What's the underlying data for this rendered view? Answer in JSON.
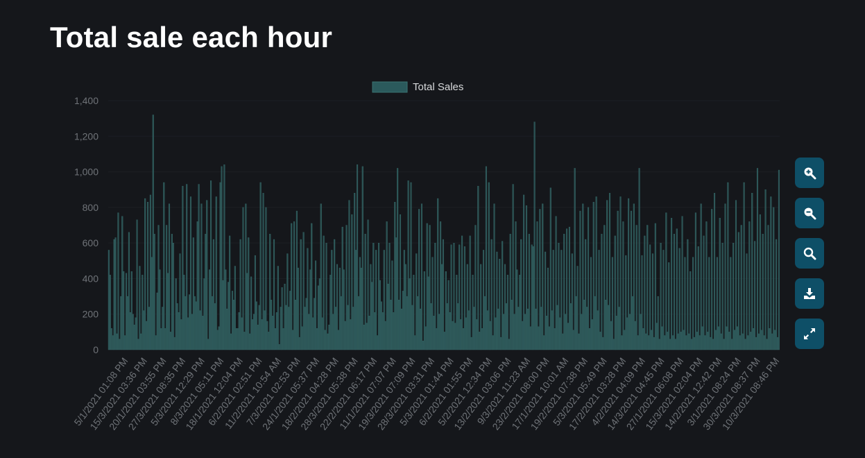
{
  "page": {
    "title": "Total sale each hour"
  },
  "toolbar": [
    {
      "name": "zoom-in-button",
      "icon": "zoom-in-icon"
    },
    {
      "name": "zoom-out-button",
      "icon": "zoom-out-icon"
    },
    {
      "name": "zoom-reset-button",
      "icon": "search-icon"
    },
    {
      "name": "download-button",
      "icon": "download-icon"
    },
    {
      "name": "fullscreen-button",
      "icon": "expand-icon"
    }
  ],
  "colors": {
    "background": "#15171b",
    "bar_fill": "#2c5556",
    "bar_stroke": "#3a7372",
    "legend_swatch": "#2b5a5c",
    "button_bg": "#0e4f67",
    "axis_text": "#6f7378",
    "legend_text": "#d8dadc",
    "title": "#ffffff"
  },
  "chart_data": {
    "type": "bar",
    "legend": {
      "position": "top-center",
      "entries": [
        "Total Sales"
      ]
    },
    "grid": true,
    "ylim": [
      0,
      1400
    ],
    "y_ticks": [
      "0",
      "200",
      "400",
      "600",
      "800",
      "1,000",
      "1,200",
      "1,400"
    ],
    "x_tick_labels": [
      "5/1/2021 01:08 PM",
      "15/3/2021 03:36 PM",
      "20/1/2021 03:55 PM",
      "27/3/2021 08:35 PM",
      "5/3/2021 12:29 PM",
      "8/3/2021 05:11 PM",
      "18/1/2021 12:04 PM",
      "6/2/2021 02:51 PM",
      "11/2/2021 10:54 AM",
      "7/3/2021 02:53 PM",
      "24/1/2021 05:37 PM",
      "18/2/2021 04:28 PM",
      "28/3/2021 05:38 PM",
      "22/2/2021 06:17 PM",
      "11/1/2021 07:07 PM",
      "19/3/2021 07:09 PM",
      "28/3/2021 03:31 PM",
      "5/3/2021 01:44 PM",
      "6/2/2021 01:55 PM",
      "5/2/2021 12:34 PM",
      "13/2/2021 03:06 PM",
      "9/3/2021 11:23 AM",
      "23/2/2021 08:00 PM",
      "17/1/2021 10:01 AM",
      "19/2/2021 07:38 PM",
      "5/3/2021 05:49 PM",
      "17/2/2021 03:28 PM",
      "4/2/2021 04:09 PM",
      "14/3/2021 04:45 PM",
      "27/1/2021 06:08 PM",
      "15/3/2021 02:04 PM",
      "14/2/2021 12:42 PM",
      "3/1/2021 08:24 PM",
      "30/3/2021 08:37 PM",
      "10/3/2021 08:46 PM"
    ],
    "series": [
      {
        "name": "Total Sales",
        "values": [
          560,
          420,
          120,
          80,
          620,
          630,
          90,
          770,
          60,
          300,
          750,
          440,
          80,
          430,
          300,
          660,
          210,
          440,
          200,
          140,
          180,
          730,
          60,
          470,
          90,
          420,
          220,
          850,
          160,
          830,
          240,
          870,
          520,
          1320,
          650,
          80,
          320,
          700,
          450,
          120,
          240,
          940,
          120,
          700,
          430,
          820,
          100,
          650,
          600,
          70,
          400,
          260,
          210,
          540,
          170,
          920,
          420,
          300,
          930,
          180,
          310,
          860,
          200,
          630,
          300,
          270,
          720,
          930,
          220,
          820,
          190,
          400,
          650,
          840,
          60,
          450,
          950,
          300,
          620,
          260,
          860,
          110,
          130,
          940,
          1030,
          390,
          1040,
          450,
          230,
          380,
          640,
          90,
          330,
          280,
          470,
          120,
          120,
          210,
          620,
          180,
          800,
          100,
          820,
          430,
          630,
          90,
          410,
          170,
          200,
          530,
          270,
          140,
          250,
          940,
          170,
          880,
          220,
          800,
          160,
          100,
          650,
          280,
          190,
          620,
          120,
          210,
          470,
          30,
          240,
          350,
          120,
          370,
          250,
          540,
          240,
          330,
          710,
          110,
          720,
          280,
          780,
          460,
          70,
          620,
          130,
          660,
          240,
          290,
          570,
          200,
          450,
          710,
          180,
          290,
          500,
          120,
          360,
          400,
          820,
          180,
          640,
          110,
          600,
          90,
          140,
          420,
          560,
          200,
          620,
          240,
          480,
          110,
          460,
          300,
          690,
          450,
          160,
          700,
          250,
          840,
          170,
          760,
          240,
          880,
          560,
          1040,
          300,
          520,
          460,
          1030,
          140,
          650,
          150,
          730,
          190,
          480,
          380,
          600,
          210,
          560,
          80,
          600,
          390,
          270,
          210,
          560,
          160,
          720,
          370,
          600,
          280,
          500,
          210,
          830,
          630,
          1020,
          280,
          760,
          230,
          330,
          560,
          480,
          300,
          950,
          400,
          940,
          250,
          420,
          80,
          540,
          300,
          790,
          230,
          820,
          50,
          440,
          130,
          710,
          410,
          700,
          260,
          520,
          190,
          600,
          120,
          850,
          200,
          720,
          480,
          620,
          100,
          440,
          260,
          390,
          210,
          590,
          160,
          600,
          150,
          420,
          260,
          590,
          170,
          640,
          120,
          580,
          180,
          480,
          220,
          640,
          70,
          420,
          240,
          700,
          170,
          920,
          100,
          480,
          120,
          560,
          300,
          1030,
          220,
          940,
          160,
          620,
          80,
          820,
          180,
          550,
          230,
          510,
          70,
          610,
          200,
          480,
          260,
          420,
          60,
          650,
          280,
          930,
          200,
          720,
          450,
          240,
          420,
          620,
          160,
          870,
          200,
          810,
          230,
          650,
          130,
          590,
          580,
          1280,
          230,
          720,
          130,
          790,
          240,
          820,
          80,
          550,
          190,
          460,
          130,
          910,
          220,
          560,
          120,
          750,
          250,
          600,
          180,
          560,
          90,
          650,
          200,
          680,
          150,
          690,
          260,
          540,
          110,
          1020,
          300,
          470,
          90,
          780,
          200,
          820,
          280,
          620,
          240,
          800,
          120,
          520,
          170,
          830,
          300,
          860,
          220,
          560,
          100,
          650,
          70,
          700,
          280,
          840,
          250,
          880,
          160,
          520,
          60,
          640,
          190,
          780,
          240,
          860,
          80,
          720,
          110,
          530,
          180,
          850,
          200,
          780,
          300,
          820,
          160,
          700,
          80,
          1020,
          200,
          530,
          120,
          640,
          90,
          700,
          80,
          590,
          110,
          540,
          70,
          710,
          150,
          300,
          60,
          600,
          130,
          560,
          80,
          770,
          100,
          490,
          60,
          740,
          80,
          650,
          60,
          680,
          90,
          570,
          100,
          750,
          110,
          520,
          80,
          620,
          90,
          440,
          60,
          520,
          70,
          770,
          100,
          580,
          80,
          820,
          130,
          640,
          80,
          720,
          100,
          520,
          70,
          790,
          60,
          880,
          110,
          520,
          130,
          740,
          90,
          600,
          60,
          820,
          130,
          940,
          100,
          520,
          60,
          600,
          110,
          840,
          130,
          660,
          80,
          700,
          90,
          940,
          60,
          540,
          80,
          720,
          100,
          880,
          120,
          610,
          70,
          1020,
          90,
          760,
          110,
          650,
          80,
          900,
          60,
          700,
          120,
          860,
          90,
          800,
          110,
          620,
          70,
          1010
        ]
      }
    ]
  }
}
